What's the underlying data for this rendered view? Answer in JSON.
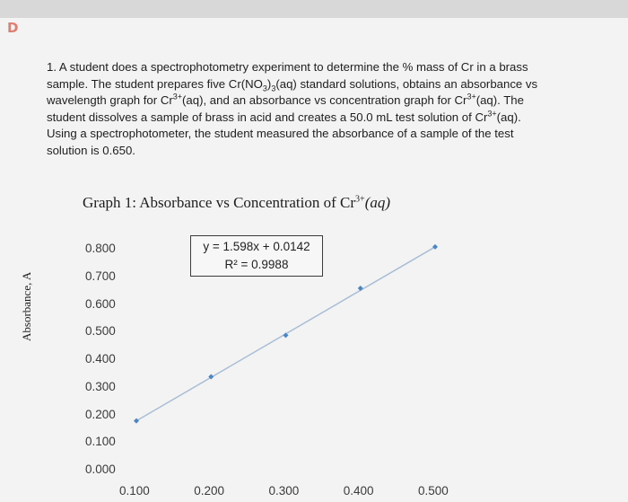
{
  "corner_mark": "D",
  "question": {
    "lines": [
      "1. A student does a spectrophotometry experiment to determine the % mass of Cr in a brass",
      "sample. The student prepares five Cr(NO",
      "wavelength graph for Cr",
      "student dissolves a sample of brass in acid and creates a 50.0 mL test solution of Cr",
      "Using a spectrophotometer, the student measured the absorbance of a sample of the test",
      "solution is 0.650."
    ],
    "line2_sub": "3",
    "line2_rest": ")",
    "line2_sub2": "3",
    "line2_tail": "(aq) standard solutions, obtains an absorbance vs",
    "line3_sup": "3+",
    "line3_mid": "(aq), and an absorbance vs concentration graph for Cr",
    "line3_sup2": "3+",
    "line3_tail": "(aq). The",
    "line4_sup": "3+",
    "line4_tail": "(aq)."
  },
  "graph_title": {
    "text": "Graph 1: Absorbance vs Concentration of Cr",
    "sup": "3+",
    "tail": "(aq)"
  },
  "equation_box": {
    "line1": "y = 1.598x + 0.0142",
    "line2": "R² = 0.9988"
  },
  "chart_data": {
    "type": "scatter",
    "title": "Graph 1: Absorbance vs Concentration of Cr3+(aq)",
    "xlabel": "",
    "ylabel": "Absorbance, A",
    "x_ticks": [
      "0.100",
      "0.200",
      "0.300",
      "0.400",
      "0.500"
    ],
    "y_ticks": [
      "0.800",
      "0.700",
      "0.600",
      "0.500",
      "0.400",
      "0.300",
      "0.200",
      "0.100",
      "0.000"
    ],
    "xlim": [
      0.1,
      0.5
    ],
    "ylim": [
      0.0,
      0.8
    ],
    "series": [
      {
        "x": [
          0.1,
          0.2,
          0.3,
          0.4,
          0.5
        ],
        "y": [
          0.18,
          0.34,
          0.49,
          0.66,
          0.81
        ]
      }
    ],
    "trendline": {
      "slope": 1.598,
      "intercept": 0.0142
    },
    "grid": false,
    "point_color": "#4a86c5",
    "line_color": "#a9bed6"
  }
}
